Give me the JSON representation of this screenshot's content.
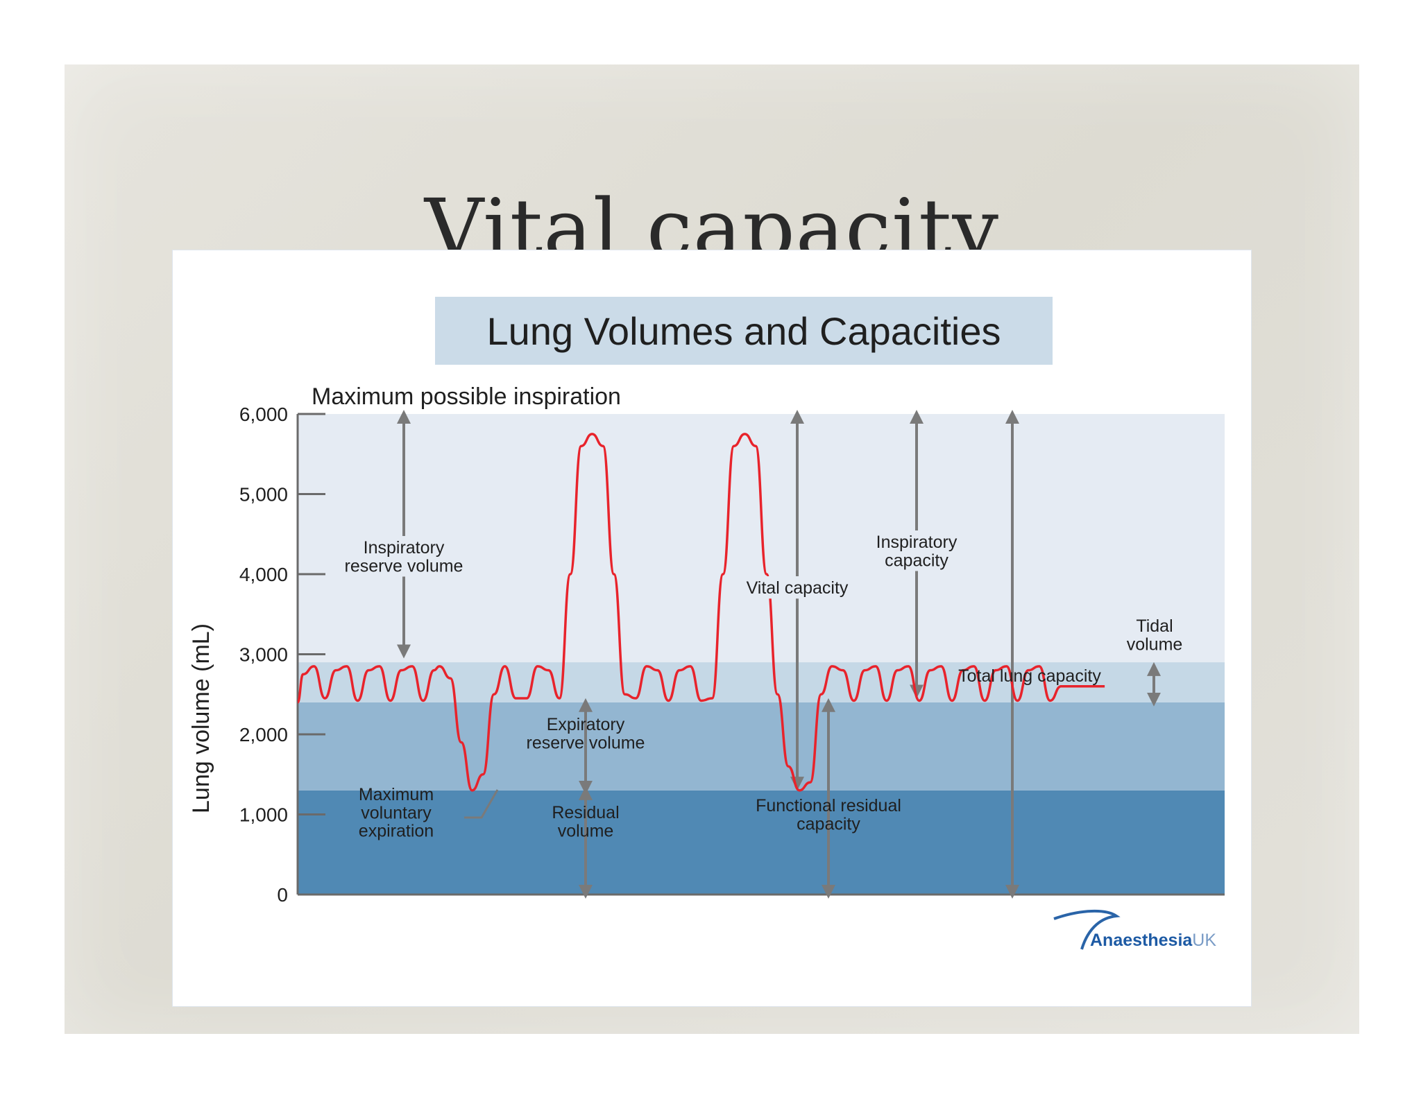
{
  "slide": {
    "title": "Vital capacity"
  },
  "chart_data": {
    "type": "line",
    "title": "Lung Volumes and Capacities",
    "ylabel": "Lung volume (mL)",
    "xlabel": "",
    "ylim": [
      0,
      6000
    ],
    "y_ticks": [
      "6,000",
      "5,000",
      "4,000",
      "3,000",
      "2,000",
      "1,000",
      "0"
    ],
    "y_tick_values": [
      6000,
      5000,
      4000,
      3000,
      2000,
      1000,
      0
    ],
    "grid": false,
    "bands": [
      {
        "from": 0,
        "to": 1300,
        "color": "#5089b4"
      },
      {
        "from": 1300,
        "to": 2400,
        "color": "#93b6d1"
      },
      {
        "from": 2400,
        "to": 2900,
        "color": "#c5d8e6"
      },
      {
        "from": 2900,
        "to": 6000,
        "color": "#e5ebf3"
      }
    ],
    "series": [
      {
        "color": "#e8232b",
        "x": [
          0,
          0.02,
          0.06,
          0.1,
          0.14,
          0.18,
          0.22,
          0.26,
          0.3,
          0.34,
          0.38,
          0.42,
          0.46,
          0.5,
          0.52,
          0.56,
          0.6,
          0.64,
          0.68,
          0.72,
          0.76,
          0.8,
          0.84,
          0.88,
          0.92,
          0.96,
          1.0,
          1.04,
          1.08,
          1.12,
          1.16,
          1.2,
          1.24,
          1.28,
          1.32,
          1.36,
          1.4,
          1.44,
          1.48,
          1.52,
          1.56,
          1.6,
          1.64,
          1.68,
          1.72,
          1.76,
          1.8,
          1.84,
          1.88,
          1.92,
          1.96,
          2.0,
          2.04,
          2.08,
          2.12,
          2.16,
          2.2,
          2.24,
          2.28,
          2.32,
          2.36,
          2.4,
          2.44,
          2.48,
          2.52,
          2.56,
          2.6,
          2.64,
          2.68,
          2.72,
          2.76,
          2.8,
          2.84,
          2.88,
          2.92,
          2.96,
          3.0,
          3.04,
          3.08,
          3.12,
          3.16,
          3.2,
          3.24,
          3.28,
          3.32,
          3.36,
          3.4
        ],
        "y": [
          2400,
          2750,
          2850,
          2450,
          2800,
          2850,
          2420,
          2800,
          2850,
          2420,
          2800,
          2850,
          2420,
          2800,
          2850,
          2700,
          1900,
          1300,
          1500,
          2500,
          2850,
          2450,
          2450,
          2850,
          2800,
          2450,
          4000,
          5600,
          5750,
          5600,
          4000,
          2500,
          2450,
          2850,
          2800,
          2420,
          2800,
          2850,
          2420,
          2450,
          4000,
          5600,
          5750,
          5600,
          4000,
          2500,
          1600,
          1300,
          1400,
          2500,
          2850,
          2800,
          2420,
          2800,
          2850,
          2420,
          2800,
          2850,
          2420,
          2800,
          2850,
          2420,
          2800,
          2850,
          2420,
          2800,
          2850,
          2420,
          2800,
          2850,
          2420,
          2600,
          2600,
          2600,
          2600,
          2600,
          2600,
          2600,
          2600,
          2600,
          2600,
          2600,
          2600,
          2600,
          2600,
          2600,
          2600
        ]
      }
    ],
    "annotations": [
      {
        "id": "max-insp",
        "text": "Maximum possible inspiration"
      },
      {
        "id": "irv",
        "lines": [
          "Inspiratory",
          "reserve volume"
        ]
      },
      {
        "id": "vc",
        "lines": [
          "Vital capacity"
        ]
      },
      {
        "id": "ic",
        "lines": [
          "Inspiratory",
          "capacity"
        ]
      },
      {
        "id": "tv",
        "lines": [
          "Tidal",
          "volume"
        ]
      },
      {
        "id": "tlc",
        "lines": [
          "Total lung capacity"
        ]
      },
      {
        "id": "erv",
        "lines": [
          "Expiratory",
          "reserve volume"
        ]
      },
      {
        "id": "mve",
        "lines": [
          "Maximum",
          "voluntary",
          "expiration"
        ]
      },
      {
        "id": "rv",
        "lines": [
          "Residual",
          "volume"
        ]
      },
      {
        "id": "frc",
        "lines": [
          "Functional residual",
          "capacity"
        ]
      }
    ],
    "logo": {
      "text_bold": "Anaesthesia",
      "text_light": "UK"
    }
  }
}
